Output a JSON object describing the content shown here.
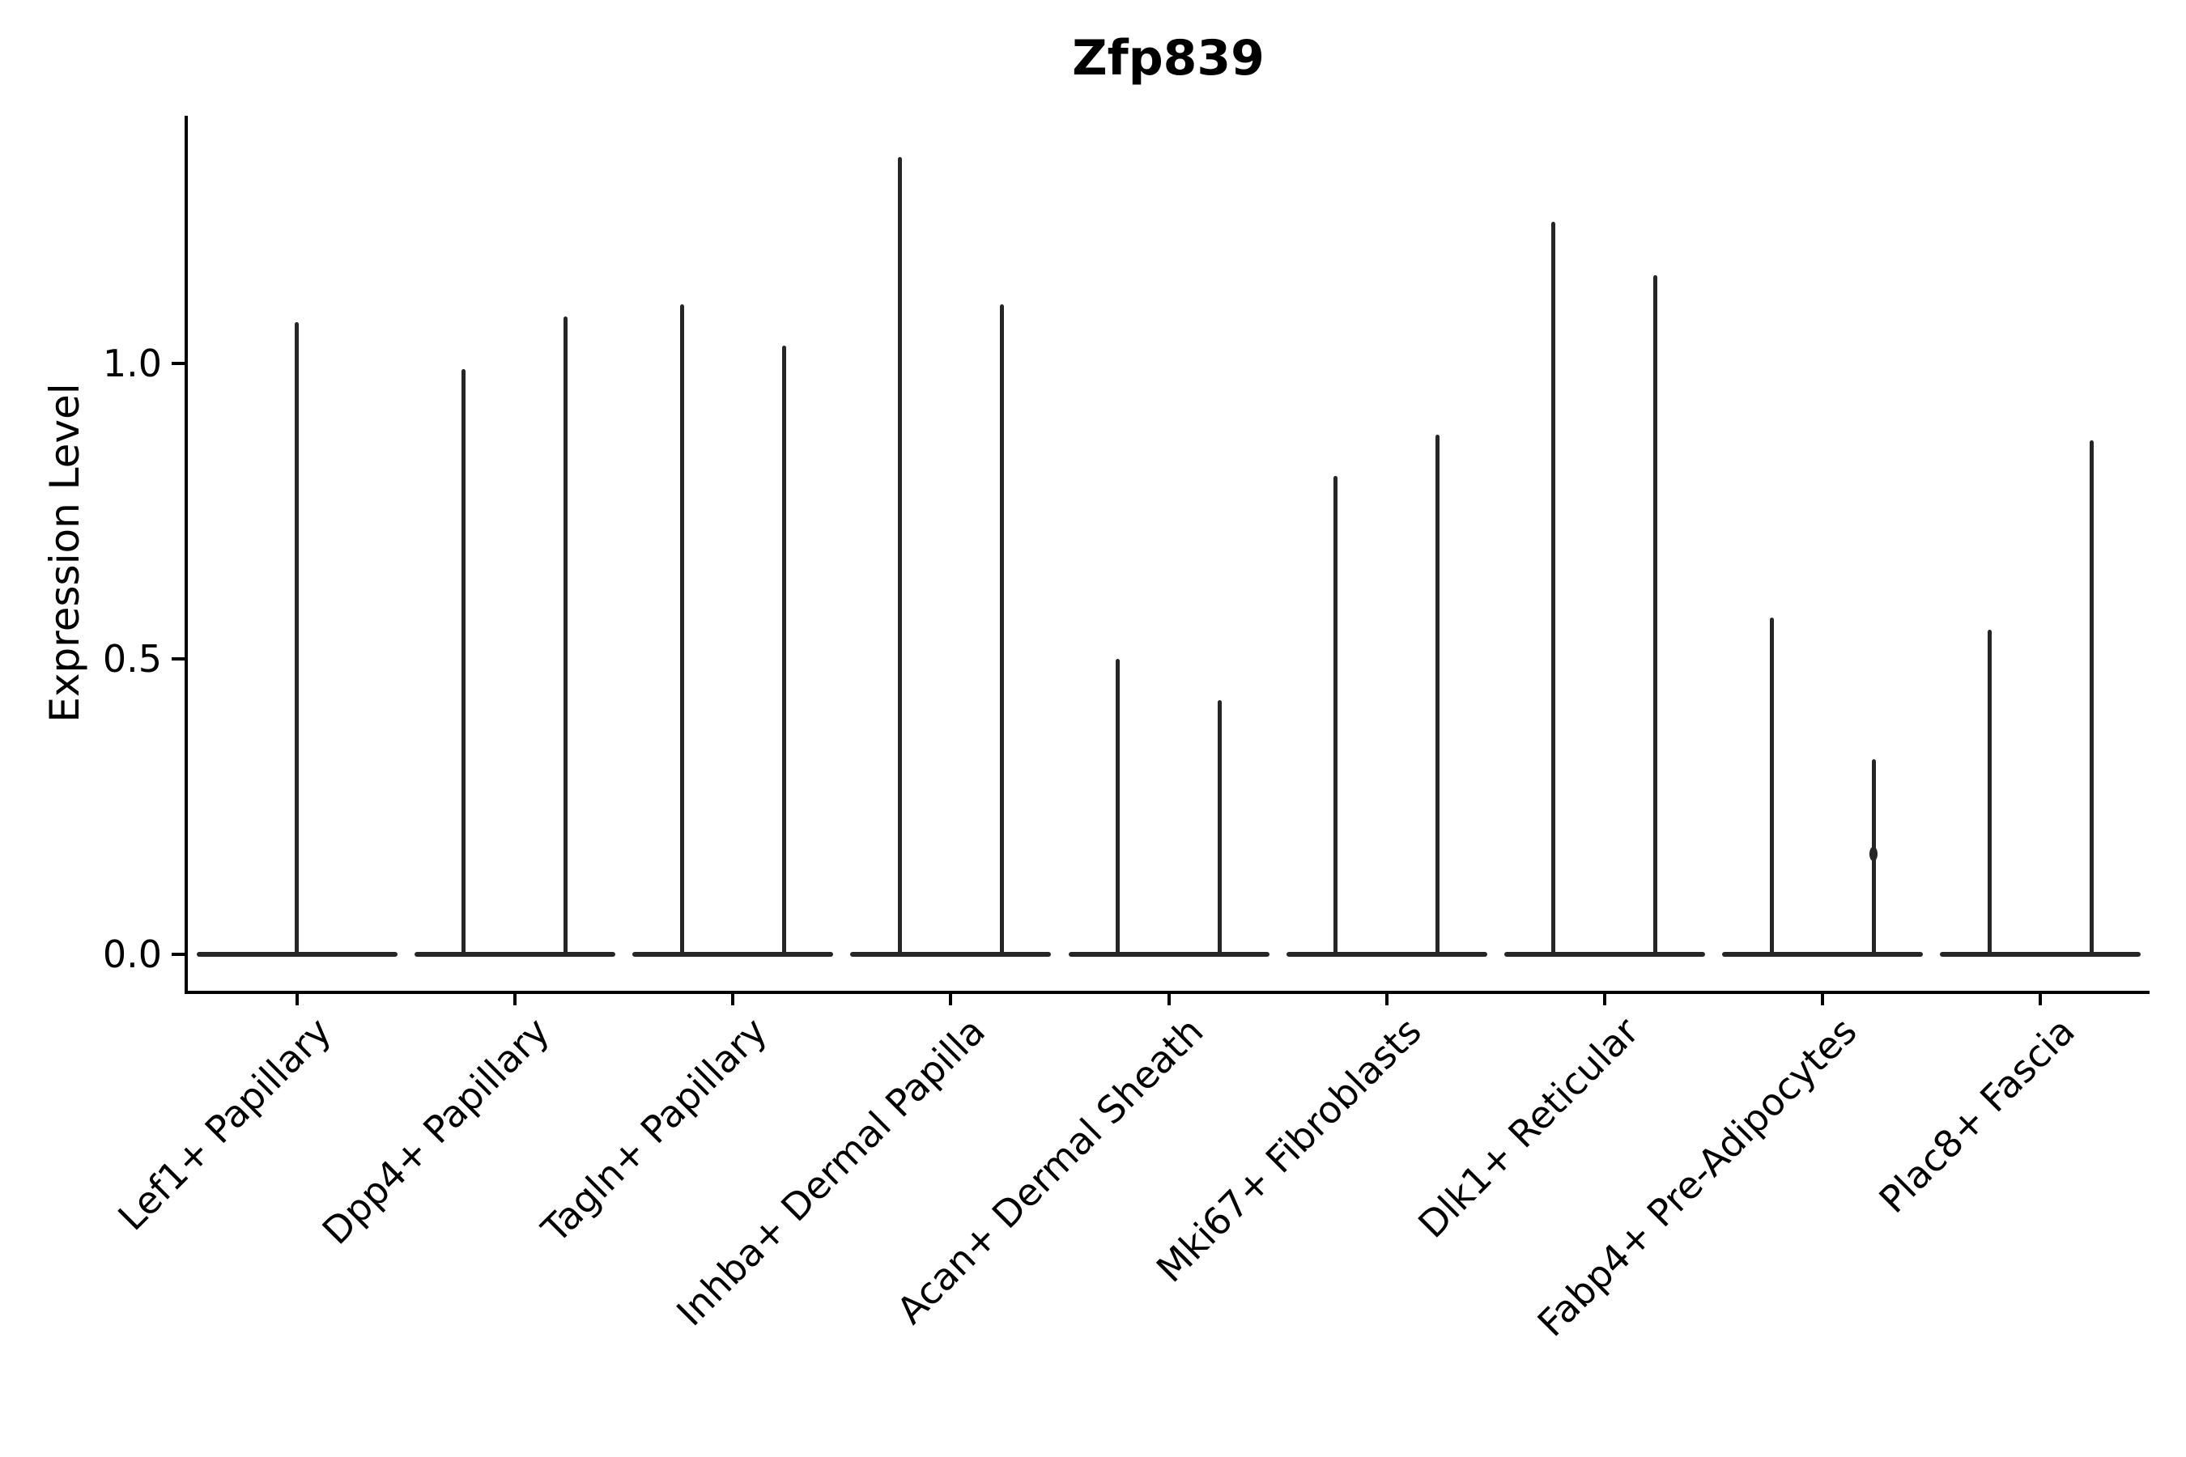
{
  "chart_data": {
    "type": "violin",
    "title": "Zfp839",
    "xlabel": "",
    "ylabel": "Expression Level",
    "yticks": [
      {
        "value": 0.0,
        "label": "0.0"
      },
      {
        "value": 0.5,
        "label": "0.5"
      },
      {
        "value": 1.0,
        "label": "1.0"
      }
    ],
    "ylim": [
      -0.06,
      1.42
    ],
    "grid": false,
    "legend": "none",
    "violin_shape": "needle (mass at 0 with thin spike to max value)",
    "categories": [
      "Lef1+ Papillary",
      "Dpp4+ Papillary",
      "Tagln+ Papillary",
      "Inhba+ Dermal Papilla",
      "Acan+ Dermal Sheath",
      "Mki67+ Fibroblasts",
      "Dlk1+ Reticular",
      "Fabp4+ Pre-Adipocytes",
      "Plac8+ Fascia"
    ],
    "series": [
      {
        "category": "Lef1+ Papillary",
        "violins": [
          {
            "max": 1.07
          }
        ]
      },
      {
        "category": "Dpp4+ Papillary",
        "violins": [
          {
            "max": 0.99
          },
          {
            "max": 1.08
          }
        ]
      },
      {
        "category": "Tagln+ Papillary",
        "violins": [
          {
            "max": 1.1
          },
          {
            "max": 1.03
          }
        ]
      },
      {
        "category": "Inhba+ Dermal Papilla",
        "violins": [
          {
            "max": 1.35
          },
          {
            "max": 1.1
          }
        ]
      },
      {
        "category": "Acan+ Dermal Sheath",
        "violins": [
          {
            "max": 0.5
          },
          {
            "max": 0.43
          }
        ]
      },
      {
        "category": "Mki67+ Fibroblasts",
        "violins": [
          {
            "max": 0.81
          },
          {
            "max": 0.88
          }
        ]
      },
      {
        "category": "Dlk1+ Reticular",
        "violins": [
          {
            "max": 1.24
          },
          {
            "max": 1.15
          }
        ]
      },
      {
        "category": "Fabp4+ Pre-Adipocytes",
        "violins": [
          {
            "max": 0.57
          },
          {
            "max": 0.33,
            "dots": [
              0.17
            ]
          }
        ]
      },
      {
        "category": "Plac8+ Fascia",
        "violins": [
          {
            "max": 0.55
          },
          {
            "max": 0.87
          }
        ]
      }
    ],
    "colors": {
      "violin": "#262626",
      "axis": "#000000",
      "text": "#000000",
      "background": "#ffffff"
    }
  }
}
